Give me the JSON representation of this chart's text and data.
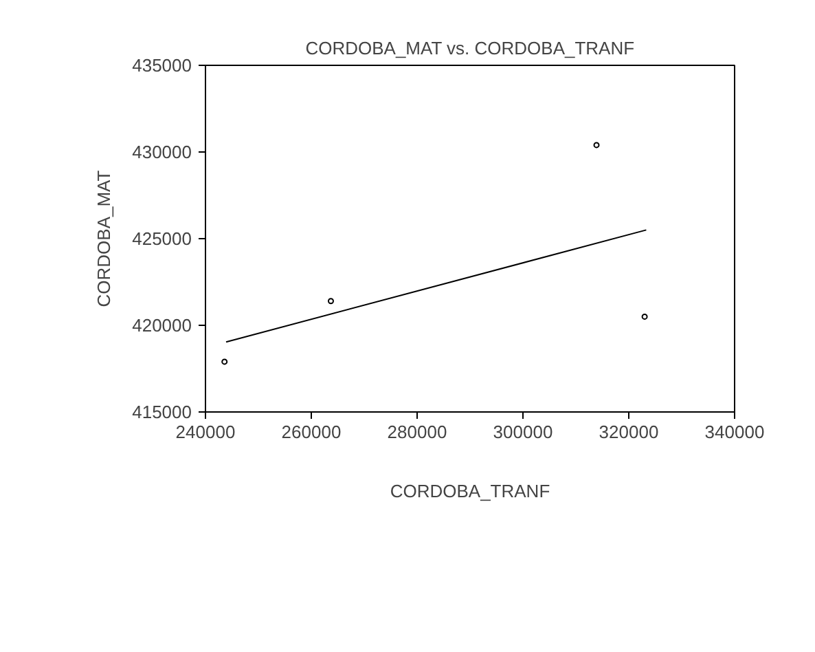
{
  "chart_data": {
    "type": "scatter",
    "title": "CORDOBA_MAT vs. CORDOBA_TRANF",
    "xlabel": "CORDOBA_TRANF",
    "ylabel": "CORDOBA_MAT",
    "xlim": [
      240000,
      340000
    ],
    "xticks": [
      240000,
      260000,
      280000,
      300000,
      320000,
      340000
    ],
    "ylim": [
      415000,
      435000
    ],
    "yticks": [
      415000,
      420000,
      425000,
      430000,
      435000
    ],
    "grid": false,
    "series": [
      {
        "color": "#000000",
        "marker": "circle",
        "x": [
          243600,
          263700,
          313900,
          323000
        ],
        "values": [
          417900,
          421400,
          430400,
          420500
        ]
      },
      {
        "type": "line",
        "marker": "none",
        "color": "#000000",
        "x": [
          243900,
          323300
        ],
        "values": [
          419040,
          425500
        ]
      }
    ]
  }
}
